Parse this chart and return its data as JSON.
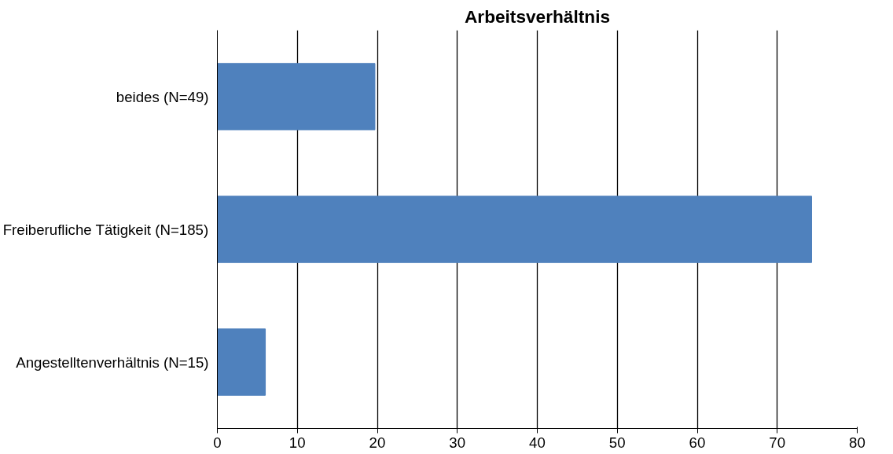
{
  "chart_data": {
    "type": "bar",
    "orientation": "horizontal",
    "title": "Arbeitsverhältnis",
    "categories": [
      "beides (N=49)",
      "Freiberufliche Tätigkeit (N=185)",
      "Angestelltenverhältnis (N=15)"
    ],
    "values": [
      19.7,
      74.3,
      6.0
    ],
    "color": "#4f81bd",
    "xlim": [
      0,
      80
    ],
    "xticks": [
      0,
      10,
      20,
      30,
      40,
      50,
      60,
      70,
      80
    ],
    "grid": "x"
  }
}
